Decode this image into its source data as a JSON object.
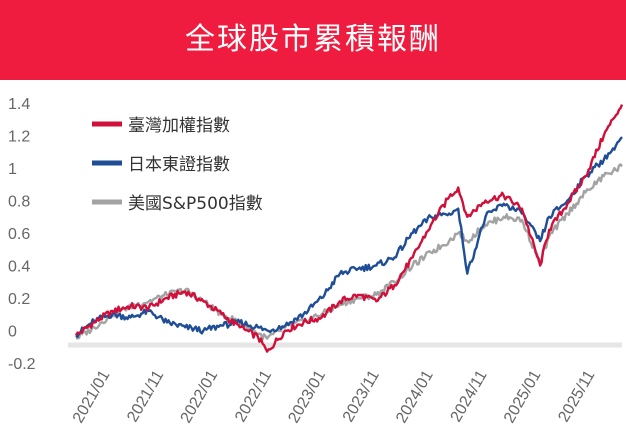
{
  "chart_data": {
    "type": "line",
    "title": "全球股市累積報酬",
    "xlabel": "",
    "ylabel": "",
    "ylim": [
      -0.2,
      1.4
    ],
    "yticks": [
      "1.4",
      "1.2",
      "1",
      "0.8",
      "0.6",
      "0.4",
      "0.2",
      "0",
      "-0.2"
    ],
    "xticks": [
      "2021/01",
      "2021/11",
      "2022/01",
      "2022/11",
      "2023/01",
      "2023/11",
      "2024/01",
      "2024/11",
      "2025/01",
      "2025/11"
    ],
    "legend_position": "top-left",
    "grid": false,
    "series": [
      {
        "name": "臺灣加權指數",
        "color": "#d0103a",
        "points": [
          [
            "2021-01",
            -0.03
          ],
          [
            "2021-03",
            0.05
          ],
          [
            "2021-05",
            0.12
          ],
          [
            "2021-07",
            0.15
          ],
          [
            "2021-09",
            0.14
          ],
          [
            "2021-11",
            0.2
          ],
          [
            "2022-01",
            0.24
          ],
          [
            "2022-03",
            0.18
          ],
          [
            "2022-05",
            0.1
          ],
          [
            "2022-07",
            0.02
          ],
          [
            "2022-09",
            -0.04
          ],
          [
            "2022-10",
            -0.13
          ],
          [
            "2022-12",
            0.0
          ],
          [
            "2023-02",
            0.05
          ],
          [
            "2023-04",
            0.08
          ],
          [
            "2023-06",
            0.18
          ],
          [
            "2023-08",
            0.22
          ],
          [
            "2023-10",
            0.18
          ],
          [
            "2023-12",
            0.28
          ],
          [
            "2024-02",
            0.45
          ],
          [
            "2024-04",
            0.65
          ],
          [
            "2024-06",
            0.82
          ],
          [
            "2024-07",
            0.88
          ],
          [
            "2024-08",
            0.7
          ],
          [
            "2024-10",
            0.8
          ],
          [
            "2024-12",
            0.83
          ],
          [
            "2025-02",
            0.75
          ],
          [
            "2025-04",
            0.4
          ],
          [
            "2025-05",
            0.62
          ],
          [
            "2025-07",
            0.78
          ],
          [
            "2025-09",
            0.95
          ],
          [
            "2025-11",
            1.2
          ],
          [
            "2025-12",
            1.3
          ],
          [
            "2026-01",
            1.39
          ]
        ]
      },
      {
        "name": "日本東證指數",
        "color": "#1f4e96",
        "points": [
          [
            "2021-01",
            -0.03
          ],
          [
            "2021-03",
            0.06
          ],
          [
            "2021-05",
            0.1
          ],
          [
            "2021-07",
            0.08
          ],
          [
            "2021-09",
            0.12
          ],
          [
            "2021-11",
            0.05
          ],
          [
            "2022-01",
            0.02
          ],
          [
            "2022-03",
            0.0
          ],
          [
            "2022-05",
            0.03
          ],
          [
            "2022-07",
            0.05
          ],
          [
            "2022-09",
            0.02
          ],
          [
            "2022-10",
            0.0
          ],
          [
            "2022-12",
            0.03
          ],
          [
            "2023-02",
            0.1
          ],
          [
            "2023-04",
            0.2
          ],
          [
            "2023-06",
            0.35
          ],
          [
            "2023-08",
            0.38
          ],
          [
            "2023-10",
            0.4
          ],
          [
            "2023-12",
            0.45
          ],
          [
            "2024-02",
            0.6
          ],
          [
            "2024-04",
            0.7
          ],
          [
            "2024-06",
            0.72
          ],
          [
            "2024-07",
            0.75
          ],
          [
            "2024-08",
            0.35
          ],
          [
            "2024-10",
            0.7
          ],
          [
            "2024-12",
            0.78
          ],
          [
            "2025-02",
            0.72
          ],
          [
            "2025-04",
            0.55
          ],
          [
            "2025-05",
            0.7
          ],
          [
            "2025-07",
            0.8
          ],
          [
            "2025-09",
            0.95
          ],
          [
            "2025-11",
            1.05
          ],
          [
            "2025-12",
            1.12
          ],
          [
            "2026-01",
            1.19
          ]
        ]
      },
      {
        "name": "美國S&P500指數",
        "color": "#a3a3a3",
        "points": [
          [
            "2021-01",
            -0.05
          ],
          [
            "2021-03",
            0.02
          ],
          [
            "2021-05",
            0.1
          ],
          [
            "2021-07",
            0.15
          ],
          [
            "2021-09",
            0.18
          ],
          [
            "2021-11",
            0.22
          ],
          [
            "2022-01",
            0.25
          ],
          [
            "2022-03",
            0.18
          ],
          [
            "2022-05",
            0.1
          ],
          [
            "2022-07",
            0.05
          ],
          [
            "2022-09",
            -0.02
          ],
          [
            "2022-10",
            -0.05
          ],
          [
            "2022-12",
            0.02
          ],
          [
            "2023-02",
            0.06
          ],
          [
            "2023-04",
            0.1
          ],
          [
            "2023-06",
            0.16
          ],
          [
            "2023-08",
            0.2
          ],
          [
            "2023-10",
            0.22
          ],
          [
            "2023-12",
            0.3
          ],
          [
            "2024-02",
            0.4
          ],
          [
            "2024-04",
            0.48
          ],
          [
            "2024-06",
            0.55
          ],
          [
            "2024-07",
            0.6
          ],
          [
            "2024-08",
            0.55
          ],
          [
            "2024-10",
            0.65
          ],
          [
            "2024-12",
            0.7
          ],
          [
            "2025-02",
            0.68
          ],
          [
            "2025-04",
            0.42
          ],
          [
            "2025-05",
            0.58
          ],
          [
            "2025-07",
            0.72
          ],
          [
            "2025-09",
            0.85
          ],
          [
            "2025-11",
            0.95
          ],
          [
            "2025-12",
            0.98
          ],
          [
            "2026-01",
            1.01
          ]
        ]
      }
    ]
  }
}
